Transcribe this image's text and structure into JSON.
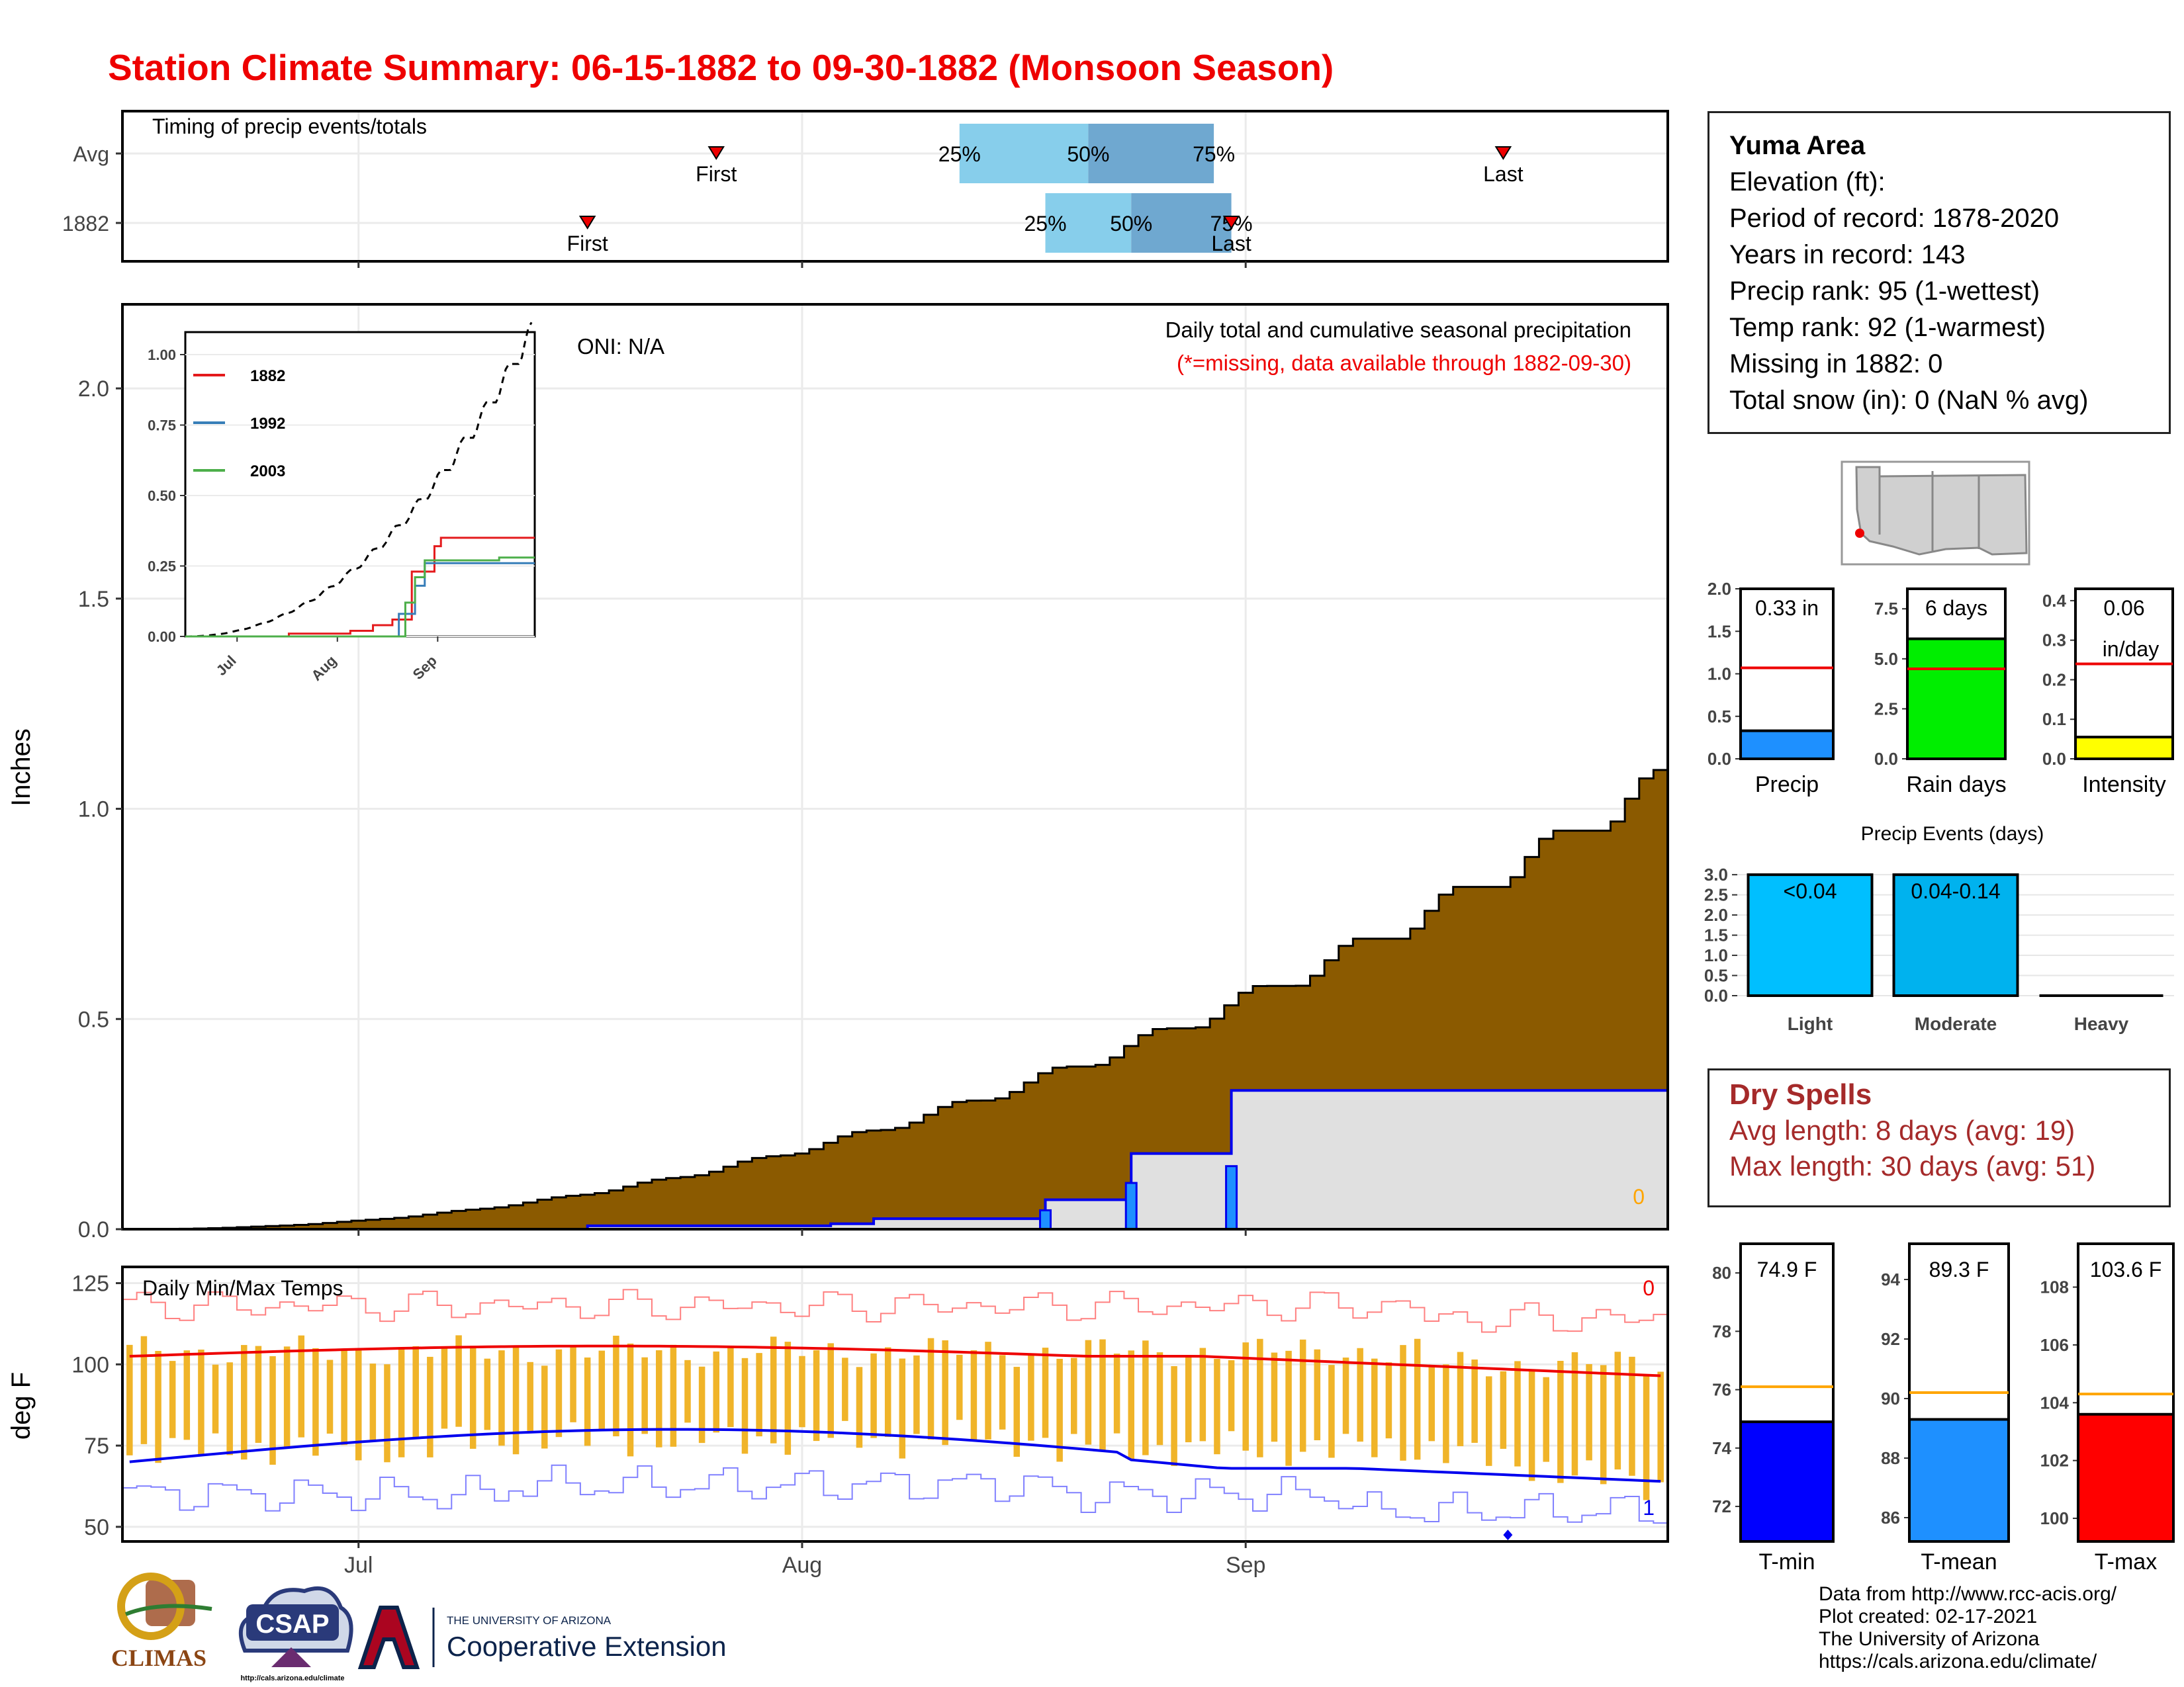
{
  "title": "Station Climate Summary: 06-15-1882 to 09-30-1882 (Monsoon Season)",
  "timing_panel": {
    "title": "Timing of precip events/totals",
    "rows": [
      {
        "label": "Avg",
        "first": "First",
        "last": "Last",
        "q25": "25%",
        "q50": "50%",
        "q75": "75%",
        "first_date": "1882-07-26",
        "last_date": "1882-09-19",
        "q25_date": "1882-08-12",
        "q50_date": "1882-08-21",
        "q75_date": "1882-08-27",
        "q75_end": "1882-08-27"
      },
      {
        "label": "1882",
        "first": "First",
        "last": "Last",
        "q25": "25%",
        "q50": "50%",
        "q75": "75%",
        "first_date": "1882-07-17",
        "last_date": "1882-08-31",
        "q25_date": "1882-08-18",
        "q50_date": "1882-08-24",
        "q75_date": "1882-08-31",
        "q75_end": "1882-08-31"
      }
    ]
  },
  "precip_panel": {
    "ylabel": "Inches",
    "yticks": [
      "0.0",
      "0.5",
      "1.0",
      "1.5",
      "2.0"
    ],
    "ylim": [
      0,
      2.2
    ],
    "oni": "ONI: N/A",
    "caption": "Daily total and cumulative seasonal precipitation",
    "missing_note": "(*=missing, data available through 1882-09-30)",
    "missing_count": "0",
    "colors": {
      "avg_fill": "#8b5a00",
      "year_fill": "#e0e0e0",
      "year_line": "#0000ee",
      "daily_bar": "#1e90ff"
    }
  },
  "inset": {
    "yticks": [
      "0.00",
      "0.25",
      "0.50",
      "0.75",
      "1.00"
    ],
    "xticks": [
      "Jul",
      "Aug",
      "Sep"
    ],
    "legend": [
      {
        "name": "1882",
        "color": "#e41a1c"
      },
      {
        "name": "1992",
        "color": "#377eb8"
      },
      {
        "name": "2003",
        "color": "#4daf4a"
      }
    ]
  },
  "temp_panel": {
    "title": "Daily Min/Max Temps",
    "ylabel": "deg F",
    "yticks": [
      "50",
      "75",
      "100",
      "125"
    ],
    "xticks": [
      "Jul",
      "Aug",
      "Sep"
    ],
    "count_max": "0",
    "count_min": "1"
  },
  "station": {
    "name": "Yuma Area",
    "lines": [
      "Elevation (ft):",
      "Period of record: 1878-2020",
      "Years in record: 143",
      "Precip rank: 95 (1-wettest)",
      "Temp rank: 92 (1-warmest)",
      "Missing in 1882: 0",
      "Total snow (in): 0 (NaN % avg)"
    ]
  },
  "mini_bars": [
    {
      "label": "Precip",
      "value_text": "0.33 in",
      "value": 0.33,
      "avg": 1.07,
      "ymax": 2.0,
      "yticks": [
        "0.0",
        "0.5",
        "1.0",
        "1.5",
        "2.0"
      ],
      "color": "#1e90ff"
    },
    {
      "label": "Rain days",
      "value_text": "6 days",
      "value": 6,
      "avg": 4.5,
      "ymax": 8.5,
      "yticks": [
        "0.0",
        "2.5",
        "5.0",
        "7.5"
      ],
      "color": "#00ee00"
    },
    {
      "label": "Intensity",
      "value_text": "0.06",
      "value_text2": "in/day",
      "value": 0.055,
      "avg": 0.24,
      "ymax": 0.43,
      "yticks": [
        "0.0",
        "0.1",
        "0.2",
        "0.3",
        "0.4"
      ],
      "color": "#ffff00"
    }
  ],
  "precip_events": {
    "title": "Precip Events (days)",
    "yticks": [
      "0.0",
      "0.5",
      "1.0",
      "1.5",
      "2.0",
      "2.5",
      "3.0"
    ],
    "bars": [
      {
        "label": "Light",
        "value": 3,
        "text": "<0.04",
        "color": "#00bfff"
      },
      {
        "label": "Moderate",
        "value": 3,
        "text": "0.04-0.14",
        "color": "#00b2ee"
      },
      {
        "label": "Heavy",
        "value": 0,
        "text": "",
        "color": "#00bfff"
      }
    ]
  },
  "dry_spells": {
    "title": "Dry Spells",
    "avg": "Avg length: 8 days (avg: 19)",
    "max": "Max length: 30 days (avg: 51)"
  },
  "temp_bars": [
    {
      "label": "T-min",
      "value_text": "74.9 F",
      "value": 74.9,
      "avg": 76.1,
      "ymin": 70.8,
      "ymax": 81,
      "yticks": [
        "72",
        "74",
        "76",
        "78",
        "80"
      ],
      "color": "#0000ff"
    },
    {
      "label": "T-mean",
      "value_text": "89.3 F",
      "value": 89.3,
      "avg": 90.2,
      "ymin": 85.2,
      "ymax": 95.2,
      "yticks": [
        "86",
        "88",
        "90",
        "92",
        "94"
      ],
      "color": "#1e90ff"
    },
    {
      "label": "T-max",
      "value_text": "103.6 F",
      "value": 103.6,
      "avg": 104.3,
      "ymin": 99.2,
      "ymax": 109.5,
      "yticks": [
        "100",
        "102",
        "104",
        "106",
        "108"
      ],
      "color": "#ff0000"
    }
  ],
  "logos": {
    "climas": "CLIMAS",
    "csap": "CSAP",
    "csap_url": "http://cals.arizona.edu/climate",
    "ua_small": "THE UNIVERSITY OF ARIZONA",
    "ua_big": "Cooperative Extension"
  },
  "credits": [
    "Data from http://www.rcc-acis.org/",
    "Plot created: 02-17-2021",
    "The University of Arizona",
    "https://cals.arizona.edu/climate/"
  ]
}
